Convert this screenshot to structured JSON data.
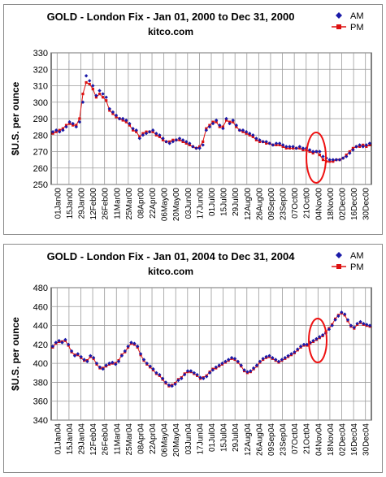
{
  "chart_data": [
    {
      "type": "scatter",
      "title": "GOLD - London Fix - Jan 01, 2000 to Dec 31, 2000",
      "subtitle": "kitco.com",
      "ylabel": "$U.S. per ounce",
      "xlabel": "",
      "ylim": [
        250,
        330
      ],
      "yticks": [
        250,
        260,
        270,
        280,
        290,
        300,
        310,
        320,
        330
      ],
      "x_tick_labels": [
        "01Jan00",
        "15Jan00",
        "29Jan00",
        "12Feb00",
        "26Feb00",
        "11Mar00",
        "25Mar00",
        "08Apr00",
        "22Apr00",
        "06May00",
        "20May00",
        "03Jun00",
        "17Jun00",
        "01Jul00",
        "15Jul00",
        "29Jul00",
        "12Aug00",
        "26Aug00",
        "09Sep00",
        "23Sep00",
        "07Oct00",
        "21Oct00",
        "04Nov00",
        "18Nov00",
        "02Dec00",
        "16Dec00",
        "30Dec00"
      ],
      "grid": true,
      "legend_position": "top-right",
      "annotation": "red ellipse highlighting early November",
      "colors": {
        "AM": "#1a1aa8",
        "PM": "#dd1111",
        "ellipse": "#ee1111"
      },
      "series": [
        {
          "name": "AM",
          "marker": "diamond",
          "values": [
            282,
            283,
            282,
            283,
            285,
            288,
            287,
            285,
            288,
            300,
            316,
            313,
            310,
            304,
            307,
            305,
            303,
            296,
            294,
            292,
            290,
            290,
            289,
            287,
            284,
            283,
            278,
            280,
            281,
            282,
            283,
            281,
            280,
            278,
            276,
            275,
            276,
            277,
            278,
            277,
            276,
            275,
            273,
            272,
            272,
            274,
            283,
            285,
            287,
            289,
            286,
            284,
            290,
            287,
            289,
            286,
            283,
            283,
            282,
            281,
            280,
            278,
            277,
            276,
            276,
            275,
            274,
            275,
            275,
            274,
            273,
            273,
            273,
            272,
            273,
            272,
            272,
            271,
            270,
            270,
            270,
            267,
            266,
            265,
            265,
            265,
            265,
            266,
            267,
            269,
            271,
            273,
            274,
            273,
            274,
            275
          ]
        },
        {
          "name": "PM",
          "marker": "square",
          "values": [
            281,
            282,
            283,
            284,
            286,
            287,
            286,
            286,
            290,
            305,
            312,
            311,
            308,
            303,
            305,
            303,
            301,
            295,
            293,
            291,
            290,
            289,
            288,
            286,
            283,
            282,
            279,
            281,
            282,
            282,
            282,
            280,
            279,
            277,
            276,
            276,
            277,
            277,
            277,
            276,
            275,
            274,
            273,
            272,
            273,
            276,
            284,
            286,
            288,
            288,
            285,
            285,
            289,
            288,
            288,
            285,
            283,
            282,
            281,
            280,
            279,
            277,
            276,
            276,
            275,
            275,
            274,
            274,
            274,
            273,
            272,
            272,
            272,
            272,
            272,
            271,
            271,
            270,
            269,
            270,
            268,
            265,
            264,
            264,
            264,
            265,
            265,
            266,
            268,
            270,
            272,
            273,
            273,
            274,
            273,
            274
          ]
        }
      ]
    },
    {
      "type": "scatter",
      "title": "GOLD - London Fix - Jan 01, 2004 to Dec 31, 2004",
      "subtitle": "kitco.com",
      "ylabel": "$U.S. per ounce",
      "xlabel": "",
      "ylim": [
        340,
        480
      ],
      "yticks": [
        340,
        360,
        380,
        400,
        420,
        440,
        460,
        480
      ],
      "x_tick_labels": [
        "01Jan04",
        "15Jan04",
        "29Jan04",
        "12Feb04",
        "26Feb04",
        "11Mar04",
        "25Mar04",
        "08Apr04",
        "22Apr04",
        "06May04",
        "20May04",
        "03Jun04",
        "17Jun04",
        "01Jul04",
        "15Jul04",
        "29Jul04",
        "12Aug04",
        "26Aug04",
        "09Sep04",
        "23Sep04",
        "07Oct04",
        "21Oct04",
        "04Nov04",
        "18Nov04",
        "02Dec04",
        "16Dec04",
        "30Dec04"
      ],
      "grid": true,
      "legend_position": "top-right",
      "annotation": "red ellipse highlighting late October to early November",
      "colors": {
        "AM": "#1a1aa8",
        "PM": "#dd1111",
        "ellipse": "#ee1111"
      },
      "series": [
        {
          "name": "AM",
          "marker": "diamond",
          "values": [
            418,
            422,
            424,
            422,
            425,
            420,
            413,
            408,
            410,
            407,
            404,
            402,
            408,
            406,
            400,
            396,
            394,
            398,
            400,
            401,
            399,
            402,
            408,
            413,
            418,
            422,
            421,
            418,
            410,
            404,
            400,
            397,
            394,
            390,
            388,
            384,
            380,
            377,
            376,
            378,
            382,
            384,
            388,
            392,
            392,
            390,
            388,
            385,
            384,
            386,
            390,
            393,
            396,
            398,
            400,
            402,
            404,
            406,
            405,
            402,
            398,
            393,
            391,
            392,
            395,
            398,
            402,
            405,
            407,
            408,
            406,
            404,
            402,
            404,
            406,
            408,
            410,
            412,
            415,
            418,
            420,
            420,
            422,
            424,
            426,
            428,
            430,
            432,
            436,
            440,
            446,
            450,
            454,
            452,
            446,
            440,
            438,
            442,
            444,
            442,
            441,
            440
          ]
        },
        {
          "name": "PM",
          "marker": "square",
          "values": [
            417,
            421,
            423,
            423,
            424,
            419,
            412,
            409,
            409,
            406,
            403,
            403,
            407,
            405,
            399,
            395,
            395,
            397,
            399,
            400,
            400,
            403,
            409,
            412,
            417,
            421,
            420,
            417,
            409,
            403,
            399,
            396,
            393,
            389,
            387,
            383,
            379,
            376,
            377,
            379,
            383,
            385,
            389,
            391,
            391,
            389,
            387,
            384,
            385,
            387,
            391,
            394,
            395,
            397,
            399,
            401,
            403,
            405,
            404,
            401,
            397,
            392,
            390,
            391,
            394,
            397,
            401,
            404,
            406,
            407,
            405,
            403,
            401,
            403,
            405,
            407,
            409,
            411,
            414,
            417,
            419,
            419,
            421,
            423,
            425,
            427,
            429,
            433,
            437,
            441,
            447,
            451,
            453,
            451,
            445,
            439,
            437,
            441,
            443,
            441,
            440,
            439
          ]
        }
      ]
    }
  ]
}
